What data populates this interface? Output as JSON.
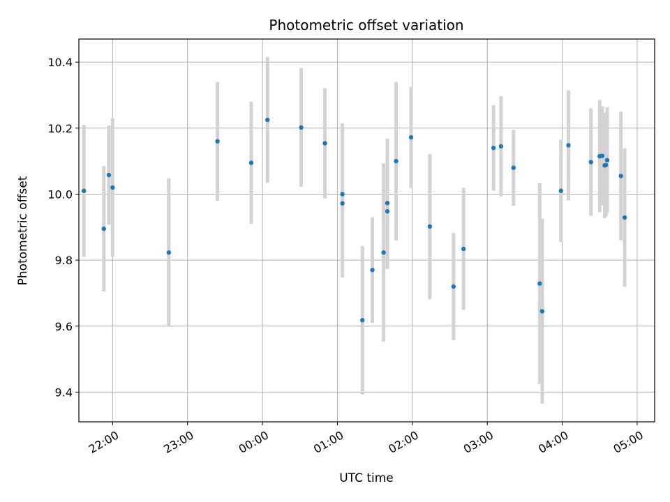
{
  "chart_data": {
    "type": "scatter",
    "title": "Photometric offset variation",
    "xlabel": "UTC time",
    "ylabel": "Photometric offset",
    "grid": true,
    "legend": "none",
    "x_ticks": [
      "22:00",
      "23:00",
      "00:00",
      "01:00",
      "02:00",
      "03:00",
      "04:00",
      "05:00"
    ],
    "x_tick_minutes": [
      1320,
      1380,
      1440,
      1500,
      1560,
      1620,
      1680,
      1740
    ],
    "y_ticks": [
      "9.4",
      "9.6",
      "9.8",
      "10.0",
      "10.2",
      "10.4"
    ],
    "xlim": [
      "21:33",
      "05:14"
    ],
    "xlim_minutes": [
      1293,
      1754
    ],
    "ylim": [
      9.31,
      10.47
    ],
    "colors": {
      "marker": "#1f77b4",
      "errorbar": "#d3d3d3",
      "grid": "#b0b0b0"
    },
    "points": [
      {
        "t": "21:37",
        "y": 10.01,
        "err": 0.2
      },
      {
        "t": "21:53",
        "y": 9.895,
        "err": 0.19
      },
      {
        "t": "21:57",
        "y": 10.058,
        "err": 0.15
      },
      {
        "t": "22:00",
        "y": 10.02,
        "err": 0.21
      },
      {
        "t": "22:45",
        "y": 9.823,
        "err": 0.225
      },
      {
        "t": "23:24",
        "y": 10.16,
        "err": 0.18
      },
      {
        "t": "23:51",
        "y": 10.095,
        "err": 0.185
      },
      {
        "t": "00:04",
        "y": 10.225,
        "err": 0.19
      },
      {
        "t": "00:31",
        "y": 10.202,
        "err": 0.18
      },
      {
        "t": "00:50",
        "y": 10.154,
        "err": 0.167
      },
      {
        "t": "01:04",
        "y": 10.0,
        "err": 0.215
      },
      {
        "t": "01:04",
        "y": 9.972,
        "err": 0.225
      },
      {
        "t": "01:20",
        "y": 9.618,
        "err": 0.225
      },
      {
        "t": "01:28",
        "y": 9.77,
        "err": 0.16
      },
      {
        "t": "01:37",
        "y": 9.823,
        "err": 0.27
      },
      {
        "t": "01:40",
        "y": 9.973,
        "err": 0.195
      },
      {
        "t": "01:40",
        "y": 9.948,
        "err": 0.175
      },
      {
        "t": "01:47",
        "y": 10.1,
        "err": 0.24
      },
      {
        "t": "01:59",
        "y": 10.172,
        "err": 0.153
      },
      {
        "t": "02:14",
        "y": 9.902,
        "err": 0.22
      },
      {
        "t": "02:33",
        "y": 9.72,
        "err": 0.163
      },
      {
        "t": "02:41",
        "y": 9.834,
        "err": 0.185
      },
      {
        "t": "03:05",
        "y": 10.14,
        "err": 0.13
      },
      {
        "t": "03:11",
        "y": 10.145,
        "err": 0.152
      },
      {
        "t": "03:21",
        "y": 10.08,
        "err": 0.115
      },
      {
        "t": "03:42",
        "y": 9.729,
        "err": 0.305
      },
      {
        "t": "03:44",
        "y": 9.645,
        "err": 0.28
      },
      {
        "t": "03:59",
        "y": 10.01,
        "err": 0.155
      },
      {
        "t": "04:05",
        "y": 10.148,
        "err": 0.167
      },
      {
        "t": "04:23",
        "y": 10.097,
        "err": 0.163
      },
      {
        "t": "04:30",
        "y": 10.115,
        "err": 0.17
      },
      {
        "t": "04:32",
        "y": 10.116,
        "err": 0.15
      },
      {
        "t": "04:34",
        "y": 10.087,
        "err": 0.16
      },
      {
        "t": "04:35",
        "y": 10.088,
        "err": 0.155
      },
      {
        "t": "04:36",
        "y": 10.103,
        "err": 0.16
      },
      {
        "t": "04:47",
        "y": 10.055,
        "err": 0.195
      },
      {
        "t": "04:50",
        "y": 9.929,
        "err": 0.21
      }
    ]
  }
}
